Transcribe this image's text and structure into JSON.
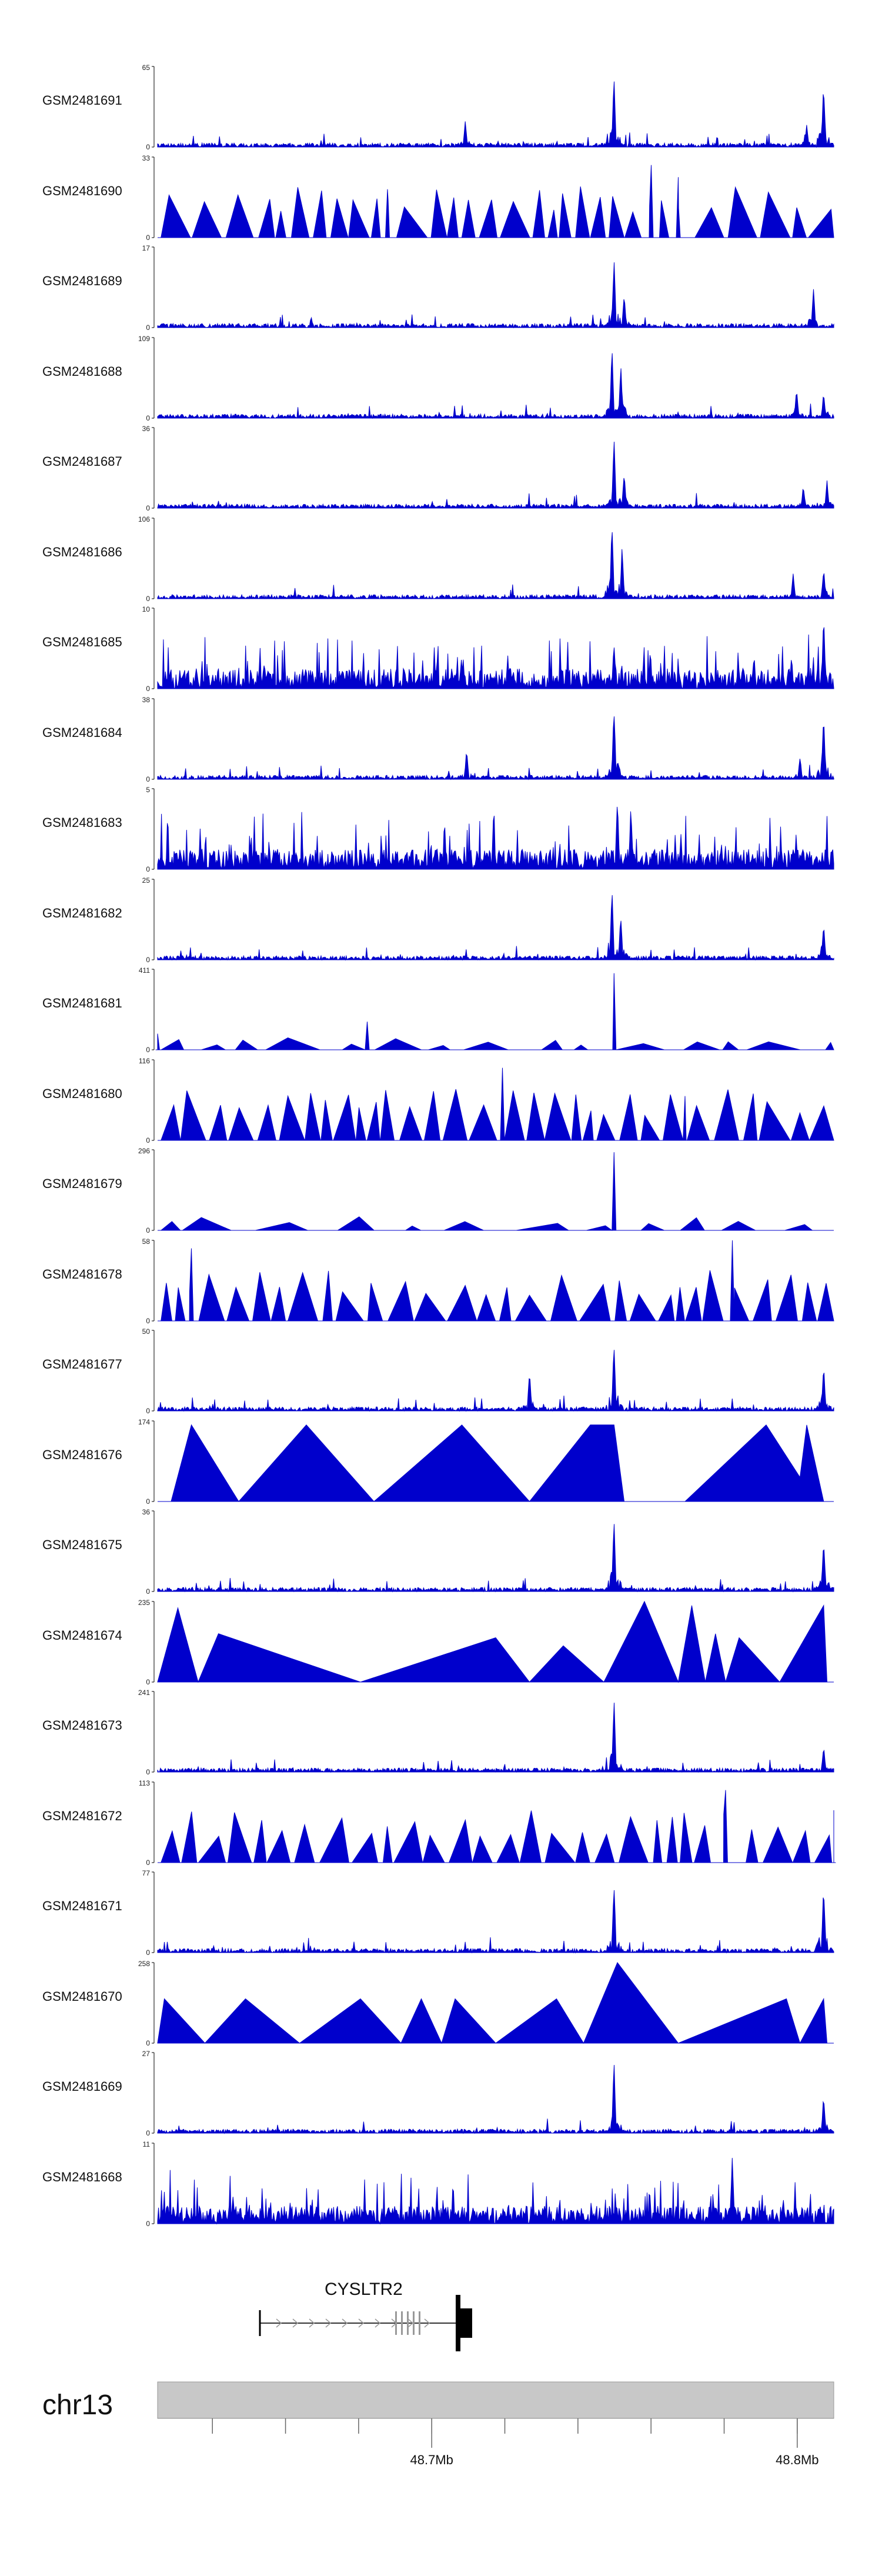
{
  "chart_data": {
    "type": "area",
    "title": "",
    "colors": {
      "signal": "#0000cc",
      "axis": "#000000",
      "ideogram": "#c8c8c8",
      "gene": "#000000",
      "exon_light": "#999999"
    },
    "tracks": [
      {
        "name": "GSM2481691",
        "ymax": "65",
        "ymin": "0",
        "pattern": "peaks",
        "peaks": [
          [
            0.455,
            0.35
          ],
          [
            0.675,
            0.96
          ],
          [
            0.96,
            0.3
          ],
          [
            0.985,
            0.86
          ]
        ]
      },
      {
        "name": "GSM2481690",
        "ymax": "33",
        "ymin": "0",
        "pattern": "triangles",
        "peaks": [
          [
            0.34,
            0.6
          ],
          [
            0.73,
            0.9
          ],
          [
            0.77,
            0.75
          ]
        ]
      },
      {
        "name": "GSM2481689",
        "ymax": "17",
        "ymin": "0",
        "pattern": "peaks",
        "peaks": [
          [
            0.675,
            0.95
          ],
          [
            0.69,
            0.45
          ],
          [
            0.97,
            0.55
          ]
        ]
      },
      {
        "name": "GSM2481688",
        "ymax": "109",
        "ymin": "0",
        "pattern": "peaks",
        "peaks": [
          [
            0.672,
            0.95
          ],
          [
            0.685,
            0.7
          ],
          [
            0.945,
            0.4
          ],
          [
            0.985,
            0.35
          ]
        ]
      },
      {
        "name": "GSM2481687",
        "ymax": "36",
        "ymin": "0",
        "pattern": "peaks",
        "peaks": [
          [
            0.675,
            0.95
          ],
          [
            0.69,
            0.5
          ],
          [
            0.955,
            0.3
          ],
          [
            0.99,
            0.35
          ]
        ]
      },
      {
        "name": "GSM2481686",
        "ymax": "106",
        "ymin": "0",
        "pattern": "peaks",
        "peaks": [
          [
            0.672,
            0.97
          ],
          [
            0.687,
            0.7
          ],
          [
            0.94,
            0.35
          ],
          [
            0.985,
            0.4
          ]
        ]
      },
      {
        "name": "GSM2481685",
        "ymax": "10",
        "ymin": "0",
        "pattern": "noise",
        "peaks": [
          [
            0.675,
            0.6
          ],
          [
            0.985,
            0.95
          ]
        ]
      },
      {
        "name": "GSM2481684",
        "ymax": "38",
        "ymin": "0",
        "pattern": "peaks",
        "peaks": [
          [
            0.457,
            0.4
          ],
          [
            0.675,
            0.96
          ],
          [
            0.95,
            0.3
          ],
          [
            0.985,
            0.88
          ]
        ]
      },
      {
        "name": "GSM2481683",
        "ymax": "5",
        "ymin": "0",
        "pattern": "noise",
        "peaks": [
          [
            0.68,
            0.9
          ],
          [
            0.7,
            0.85
          ]
        ]
      },
      {
        "name": "GSM2481682",
        "ymax": "25",
        "ymin": "0",
        "pattern": "peaks",
        "peaks": [
          [
            0.672,
            0.95
          ],
          [
            0.685,
            0.6
          ],
          [
            0.985,
            0.5
          ]
        ]
      },
      {
        "name": "GSM2481681",
        "ymax": "411",
        "ymin": "0",
        "pattern": "sparse",
        "peaks": [
          [
            0.0,
            0.2
          ],
          [
            0.31,
            0.35
          ],
          [
            0.675,
            0.95
          ]
        ]
      },
      {
        "name": "GSM2481680",
        "ymax": "116",
        "ymin": "0",
        "pattern": "triangles",
        "peaks": [
          [
            0.51,
            0.9
          ],
          [
            0.78,
            0.55
          ]
        ]
      },
      {
        "name": "GSM2481679",
        "ymax": "296",
        "ymin": "0",
        "pattern": "sparse",
        "peaks": [
          [
            0.675,
            0.97
          ]
        ]
      },
      {
        "name": "GSM2481678",
        "ymax": "58",
        "ymin": "0",
        "pattern": "triangles",
        "peaks": [
          [
            0.05,
            0.9
          ],
          [
            0.85,
            1.0
          ]
        ]
      },
      {
        "name": "GSM2481677",
        "ymax": "50",
        "ymin": "0",
        "pattern": "peaks",
        "peaks": [
          [
            0.675,
            0.95
          ],
          [
            0.55,
            0.55
          ],
          [
            0.985,
            0.6
          ]
        ]
      },
      {
        "name": "GSM2481676",
        "ymax": "174",
        "ymin": "0",
        "pattern": "big",
        "peaks": []
      },
      {
        "name": "GSM2481675",
        "ymax": "36",
        "ymin": "0",
        "pattern": "peaks",
        "peaks": [
          [
            0.675,
            0.95
          ],
          [
            0.985,
            0.7
          ]
        ]
      },
      {
        "name": "GSM2481674",
        "ymax": "235",
        "ymin": "0",
        "pattern": "big2",
        "peaks": []
      },
      {
        "name": "GSM2481673",
        "ymax": "241",
        "ymin": "0",
        "pattern": "peaks",
        "peaks": [
          [
            0.675,
            0.96
          ],
          [
            0.985,
            0.35
          ]
        ]
      },
      {
        "name": "GSM2481672",
        "ymax": "113",
        "ymin": "0",
        "pattern": "triangles",
        "peaks": [
          [
            0.84,
            0.9
          ],
          [
            1.0,
            0.65
          ]
        ]
      },
      {
        "name": "GSM2481671",
        "ymax": "77",
        "ymin": "0",
        "pattern": "peaks",
        "peaks": [
          [
            0.675,
            0.95
          ],
          [
            0.985,
            0.95
          ]
        ]
      },
      {
        "name": "GSM2481670",
        "ymax": "258",
        "ymin": "0",
        "pattern": "big3",
        "peaks": []
      },
      {
        "name": "GSM2481669",
        "ymax": "27",
        "ymin": "0",
        "pattern": "peaks",
        "peaks": [
          [
            0.675,
            0.95
          ],
          [
            0.985,
            0.5
          ]
        ]
      },
      {
        "name": "GSM2481668",
        "ymax": "11",
        "ymin": "0",
        "pattern": "noise2",
        "peaks": [
          [
            0.85,
            0.9
          ]
        ]
      }
    ],
    "gene": {
      "name": "CYSLTR2",
      "strand": "+"
    },
    "chromosome": "chr13",
    "x_range": [
      48.625,
      48.81
    ],
    "x_ticks": [
      48.64,
      48.66,
      48.68,
      48.7,
      48.72,
      48.74,
      48.76,
      48.78,
      48.8
    ],
    "x_tick_labels": [
      {
        "pos": 48.7,
        "label": "48.7Mb"
      },
      {
        "pos": 48.8,
        "label": "48.8Mb"
      }
    ],
    "ylim": [
      0,
      1
    ]
  }
}
